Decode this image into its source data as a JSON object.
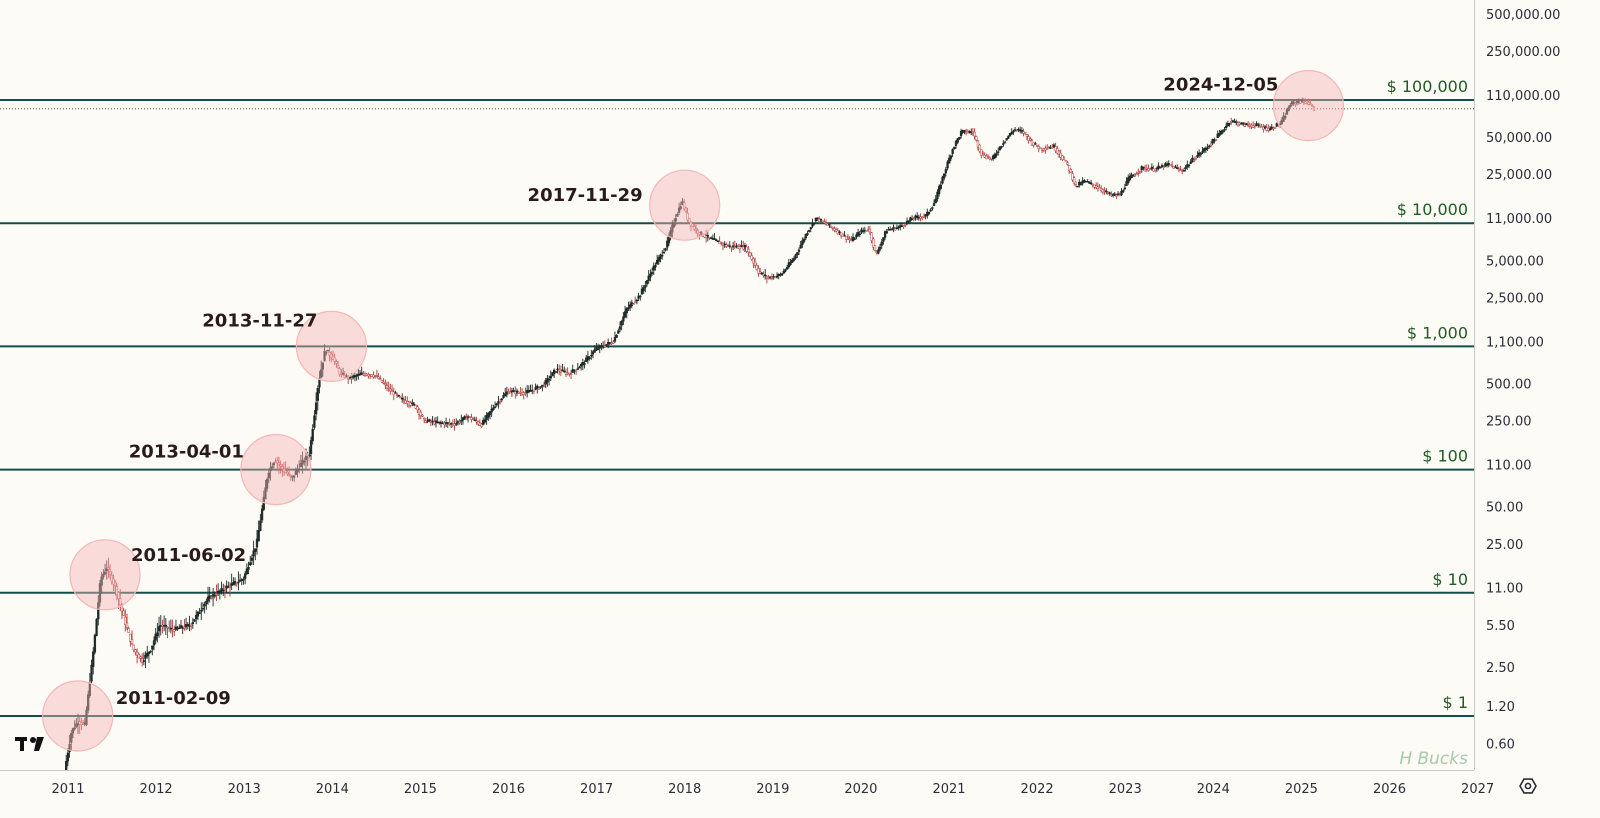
{
  "colors": {
    "background": "#fdfbf6",
    "level_line": "#134e4a",
    "level_label": "#1f5b24",
    "candle_up": "#1f2a27",
    "candle_down": "#b23a3a",
    "highlight_circle": "#f4b6b6",
    "axis_text": "#2a2e39",
    "axis_border": "#c9c9c9",
    "watermark": "#a9c9a9"
  },
  "watermark": "H Bucks",
  "logo_icon": "tradingview-logo-icon",
  "settings_icon": "gear-icon",
  "chart_data": {
    "type": "candlestick",
    "title": "",
    "xlabel": "",
    "ylabel": "",
    "y_scale": "log",
    "ylim": [
      0.42,
      700000
    ],
    "xlim": [
      2010.95,
      2027.0
    ],
    "grid": false,
    "x_ticks": [
      "2011",
      "2012",
      "2013",
      "2014",
      "2015",
      "2016",
      "2017",
      "2018",
      "2019",
      "2020",
      "2021",
      "2022",
      "2023",
      "2024",
      "2025",
      "2026",
      "2027"
    ],
    "y_ticks": [
      {
        "value": 500000,
        "label": "500,000.00"
      },
      {
        "value": 250000,
        "label": "250,000.00"
      },
      {
        "value": 110000,
        "label": "110,000.00"
      },
      {
        "value": 50000,
        "label": "50,000.00"
      },
      {
        "value": 25000,
        "label": "25,000.00"
      },
      {
        "value": 11000,
        "label": "11,000.00"
      },
      {
        "value": 5000,
        "label": "5,000.00"
      },
      {
        "value": 2500,
        "label": "2,500.00"
      },
      {
        "value": 1100,
        "label": "1,100.00"
      },
      {
        "value": 500,
        "label": "500.00"
      },
      {
        "value": 250,
        "label": "250.00"
      },
      {
        "value": 110,
        "label": "110.00"
      },
      {
        "value": 50,
        "label": "50.00"
      },
      {
        "value": 25,
        "label": "25.00"
      },
      {
        "value": 11,
        "label": "11.00"
      },
      {
        "value": 5.5,
        "label": "5.50"
      },
      {
        "value": 2.5,
        "label": "2.50"
      },
      {
        "value": 1.2,
        "label": "1.20"
      },
      {
        "value": 0.6,
        "label": "0.60"
      }
    ],
    "levels": [
      {
        "value": 100000,
        "label": "$ 100,000"
      },
      {
        "value": 10000,
        "label": "$ 10,000"
      },
      {
        "value": 1000,
        "label": "$ 1,000"
      },
      {
        "value": 100,
        "label": "$ 100"
      },
      {
        "value": 10,
        "label": "$ 10"
      },
      {
        "value": 1,
        "label": "$ 1"
      }
    ],
    "current_price": 85000,
    "highlights": [
      {
        "date": "2011-02-09",
        "x": 2011.11,
        "y": 1.0
      },
      {
        "date": "2011-06-02",
        "x": 2011.42,
        "y": 14
      },
      {
        "date": "2013-04-01",
        "x": 2013.36,
        "y": 100
      },
      {
        "date": "2013-11-27",
        "x": 2013.99,
        "y": 1000
      },
      {
        "date": "2017-11-29",
        "x": 2018.0,
        "y": 14000
      },
      {
        "date": "2024-12-05",
        "x": 2025.08,
        "y": 90000
      }
    ],
    "price_anchors": [
      [
        2010.95,
        0.3
      ],
      [
        2011.05,
        0.75
      ],
      [
        2011.12,
        0.9
      ],
      [
        2011.2,
        0.85
      ],
      [
        2011.3,
        3.5
      ],
      [
        2011.38,
        13
      ],
      [
        2011.45,
        16
      ],
      [
        2011.55,
        11
      ],
      [
        2011.65,
        6
      ],
      [
        2011.75,
        3.5
      ],
      [
        2011.85,
        2.8
      ],
      [
        2011.95,
        3.5
      ],
      [
        2012.05,
        5.5
      ],
      [
        2012.2,
        5
      ],
      [
        2012.4,
        5.5
      ],
      [
        2012.6,
        9
      ],
      [
        2012.8,
        11
      ],
      [
        2013.0,
        13
      ],
      [
        2013.15,
        25
      ],
      [
        2013.28,
        95
      ],
      [
        2013.36,
        120
      ],
      [
        2013.45,
        100
      ],
      [
        2013.55,
        85
      ],
      [
        2013.65,
        110
      ],
      [
        2013.75,
        135
      ],
      [
        2013.85,
        500
      ],
      [
        2013.93,
        950
      ],
      [
        2014.02,
        800
      ],
      [
        2014.1,
        600
      ],
      [
        2014.2,
        550
      ],
      [
        2014.35,
        600
      ],
      [
        2014.5,
        580
      ],
      [
        2014.65,
        450
      ],
      [
        2014.8,
        370
      ],
      [
        2014.95,
        330
      ],
      [
        2015.05,
        250
      ],
      [
        2015.2,
        240
      ],
      [
        2015.4,
        235
      ],
      [
        2015.55,
        270
      ],
      [
        2015.7,
        230
      ],
      [
        2015.85,
        330
      ],
      [
        2016.0,
        430
      ],
      [
        2016.2,
        420
      ],
      [
        2016.4,
        480
      ],
      [
        2016.55,
        650
      ],
      [
        2016.7,
        600
      ],
      [
        2016.85,
        720
      ],
      [
        2017.0,
        950
      ],
      [
        2017.2,
        1100
      ],
      [
        2017.35,
        2000
      ],
      [
        2017.5,
        2600
      ],
      [
        2017.65,
        4300
      ],
      [
        2017.8,
        6500
      ],
      [
        2017.9,
        11000
      ],
      [
        2017.98,
        15000
      ],
      [
        2018.05,
        10500
      ],
      [
        2018.15,
        8500
      ],
      [
        2018.3,
        7500
      ],
      [
        2018.5,
        6500
      ],
      [
        2018.7,
        6400
      ],
      [
        2018.85,
        4000
      ],
      [
        2018.95,
        3600
      ],
      [
        2019.1,
        3800
      ],
      [
        2019.25,
        5200
      ],
      [
        2019.4,
        8500
      ],
      [
        2019.5,
        11000
      ],
      [
        2019.6,
        10000
      ],
      [
        2019.75,
        8500
      ],
      [
        2019.9,
        7200
      ],
      [
        2020.0,
        8500
      ],
      [
        2020.1,
        9000
      ],
      [
        2020.18,
        5500
      ],
      [
        2020.3,
        8800
      ],
      [
        2020.45,
        9300
      ],
      [
        2020.6,
        11000
      ],
      [
        2020.75,
        11500
      ],
      [
        2020.85,
        15000
      ],
      [
        2020.95,
        25000
      ],
      [
        2021.05,
        40000
      ],
      [
        2021.15,
        55000
      ],
      [
        2021.28,
        55000
      ],
      [
        2021.38,
        36000
      ],
      [
        2021.5,
        33000
      ],
      [
        2021.62,
        45000
      ],
      [
        2021.75,
        58000
      ],
      [
        2021.85,
        55000
      ],
      [
        2021.95,
        45000
      ],
      [
        2022.05,
        40000
      ],
      [
        2022.2,
        42000
      ],
      [
        2022.35,
        30000
      ],
      [
        2022.45,
        20000
      ],
      [
        2022.55,
        22000
      ],
      [
        2022.7,
        19500
      ],
      [
        2022.85,
        16800
      ],
      [
        2022.95,
        17000
      ],
      [
        2023.05,
        23000
      ],
      [
        2023.2,
        28000
      ],
      [
        2023.35,
        27500
      ],
      [
        2023.5,
        30000
      ],
      [
        2023.65,
        26500
      ],
      [
        2023.8,
        34000
      ],
      [
        2023.95,
        42000
      ],
      [
        2024.1,
        55000
      ],
      [
        2024.2,
        68000
      ],
      [
        2024.35,
        63000
      ],
      [
        2024.5,
        62000
      ],
      [
        2024.65,
        58000
      ],
      [
        2024.78,
        65000
      ],
      [
        2024.88,
        92000
      ],
      [
        2024.98,
        98000
      ],
      [
        2025.08,
        96000
      ],
      [
        2025.15,
        85000
      ]
    ]
  }
}
